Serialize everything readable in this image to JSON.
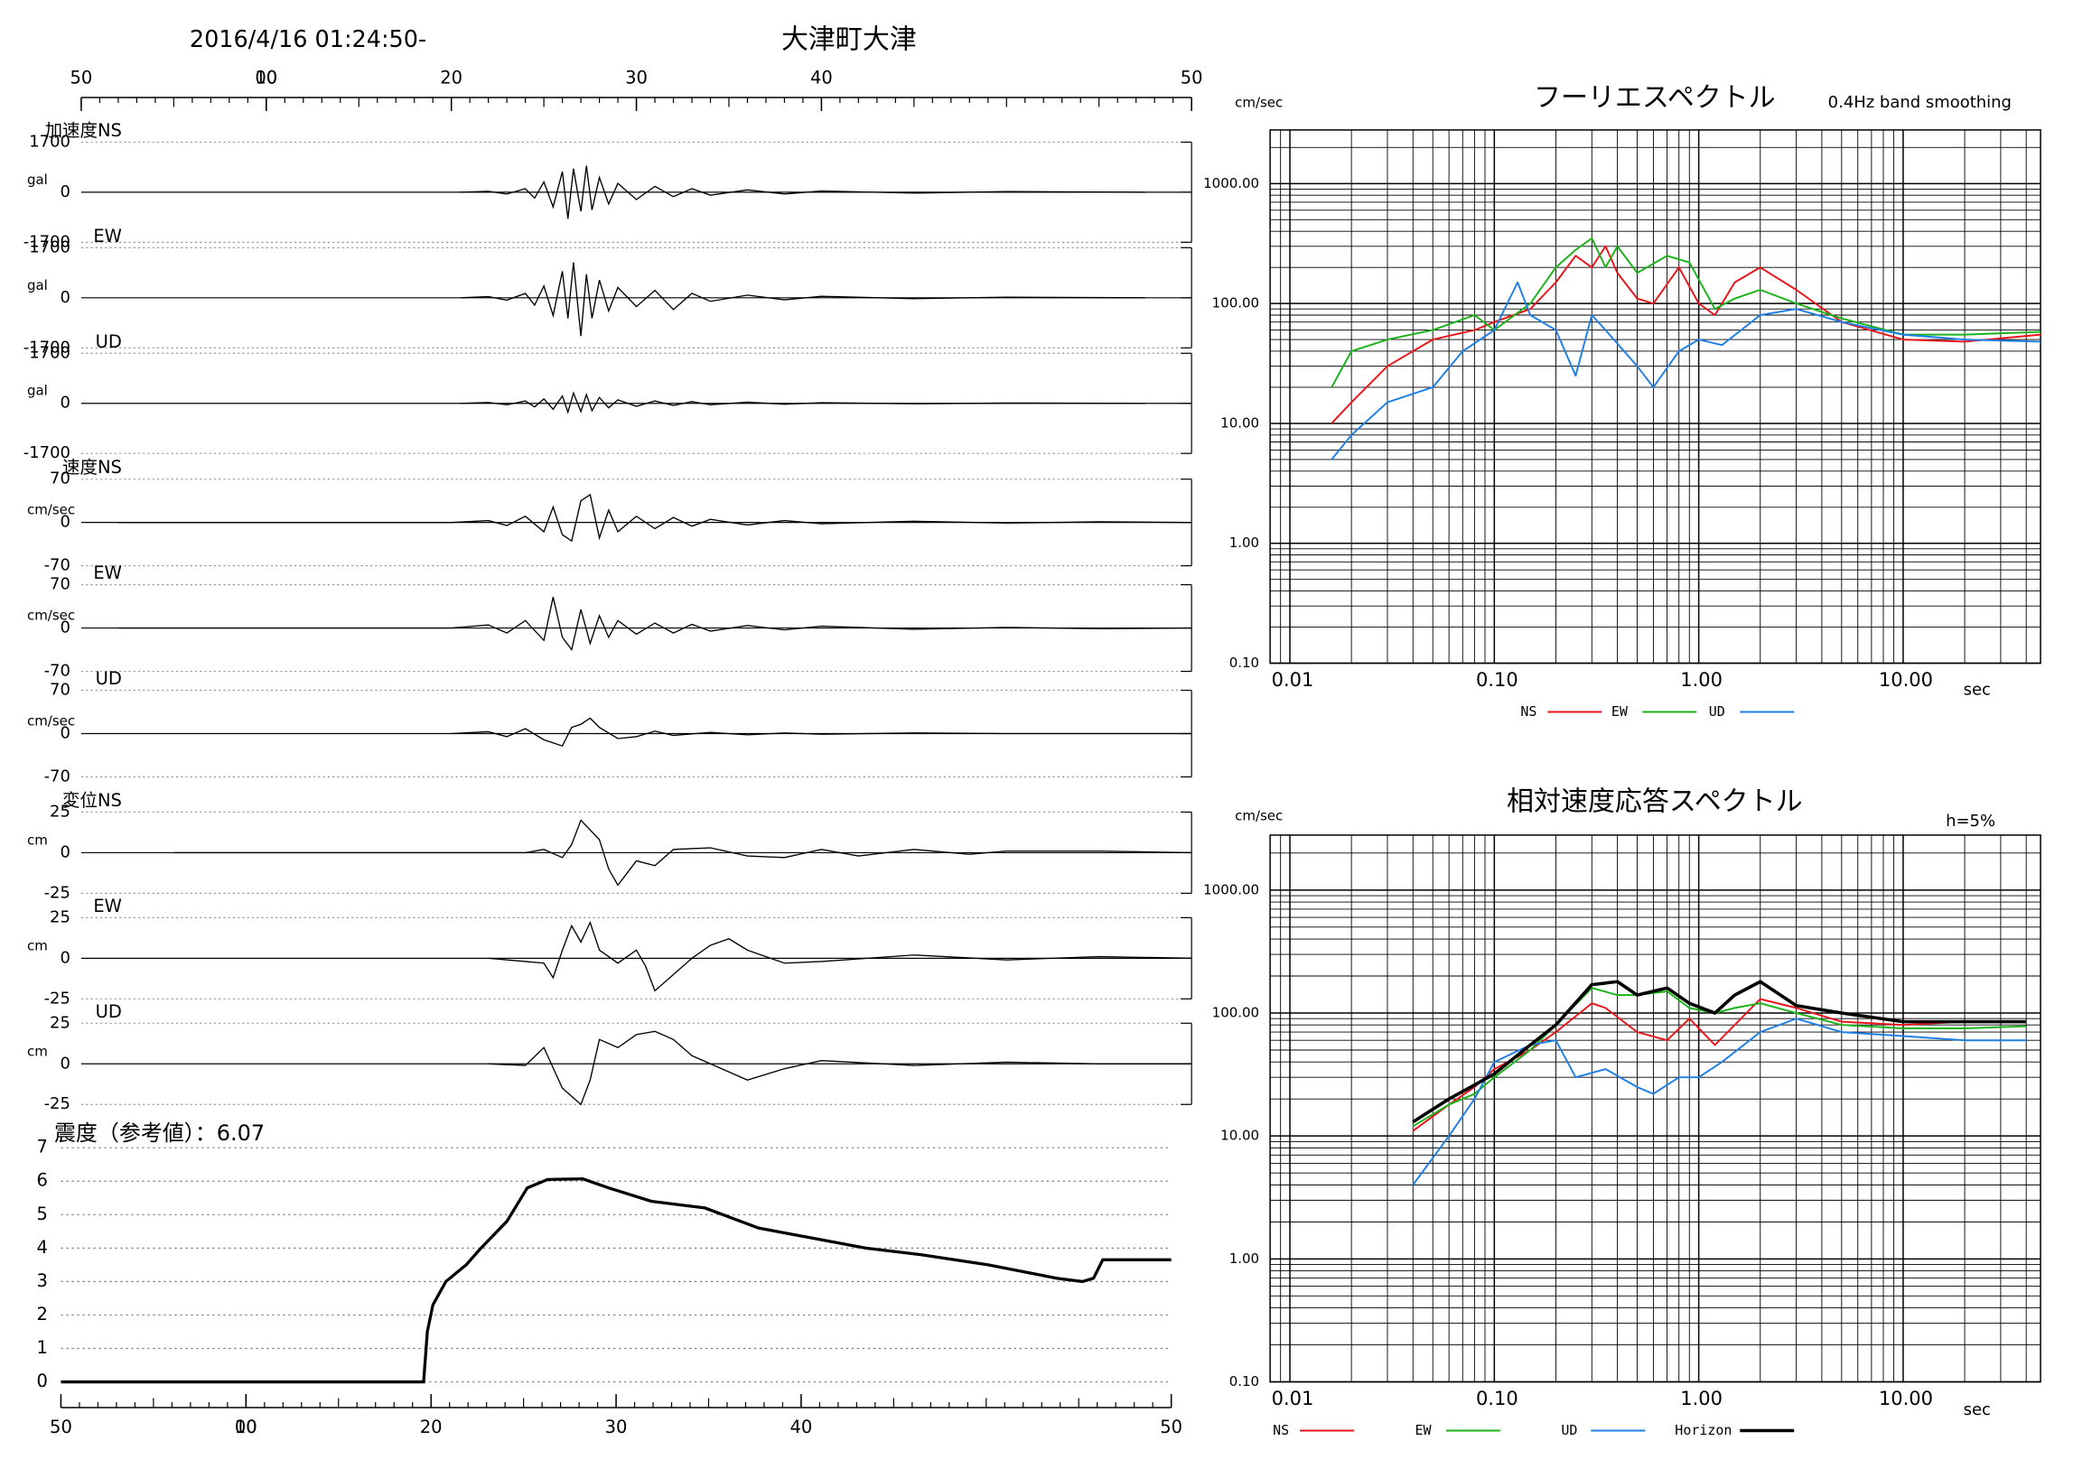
{
  "header": {
    "datetime": "2016/4/16 01:24:50-",
    "station": "大津町大津"
  },
  "chart_data": [
    {
      "type": "waveform",
      "xlim": [
        0,
        60
      ],
      "xticks": [
        {
          "value": 0,
          "label": "50"
        },
        {
          "value": 10,
          "label": "00"
        },
        10,
        20,
        30,
        40,
        {
          "value": 60,
          "label": "50"
        }
      ],
      "panels": [
        {
          "label": "加速度NS",
          "unit": "gal",
          "ylim": [
            -1700,
            1700
          ],
          "yticks": [
            -1700,
            0,
            1700
          ],
          "x": [
            20.5,
            22,
            23,
            24,
            24.5,
            25,
            25.5,
            26,
            26.3,
            26.6,
            27,
            27.3,
            27.6,
            28,
            28.5,
            29,
            30,
            31,
            32,
            33,
            34,
            36,
            38,
            40,
            45,
            50,
            57.5
          ],
          "values": [
            0,
            30,
            -60,
            120,
            -200,
            350,
            -500,
            700,
            -900,
            800,
            -650,
            900,
            -600,
            500,
            -400,
            300,
            -250,
            200,
            -150,
            120,
            -100,
            80,
            -60,
            40,
            -30,
            20,
            0
          ]
        },
        {
          "label": "EW",
          "unit": "gal",
          "ylim": [
            -1700,
            1700
          ],
          "yticks": [
            -1700,
            0,
            1700
          ],
          "x": [
            20.5,
            22,
            23,
            24,
            24.5,
            25,
            25.5,
            26,
            26.3,
            26.6,
            27,
            27.3,
            27.6,
            28,
            28.5,
            29,
            30,
            31,
            32,
            33,
            34,
            36,
            38,
            40,
            45,
            50,
            57.5
          ],
          "values": [
            0,
            40,
            -80,
            150,
            -250,
            400,
            -600,
            900,
            -700,
            1200,
            -1300,
            800,
            -700,
            600,
            -450,
            350,
            -300,
            250,
            -400,
            150,
            -120,
            90,
            -70,
            50,
            -30,
            20,
            0
          ]
        },
        {
          "label": "UD",
          "unit": "gal",
          "ylim": [
            -1700,
            1700
          ],
          "yticks": [
            -1700,
            0,
            1700
          ],
          "x": [
            20.5,
            22,
            23,
            24,
            24.5,
            25,
            25.5,
            26,
            26.3,
            26.6,
            27,
            27.3,
            27.6,
            28,
            28.5,
            29,
            30,
            31,
            32,
            33,
            34,
            36,
            38,
            40,
            45,
            50,
            57.5
          ],
          "values": [
            0,
            30,
            -50,
            80,
            -120,
            150,
            -200,
            250,
            -300,
            350,
            -280,
            300,
            -250,
            200,
            -150,
            120,
            -100,
            80,
            -70,
            60,
            -50,
            40,
            -30,
            20,
            -15,
            10,
            0
          ]
        },
        {
          "label": "速度NS",
          "unit": "cm/sec",
          "ylim": [
            -70,
            70
          ],
          "yticks": [
            -70,
            0,
            70
          ],
          "x": [
            2,
            20,
            22,
            23,
            24,
            25,
            25.5,
            26,
            26.5,
            27,
            27.5,
            28,
            28.5,
            29,
            30,
            31,
            32,
            33,
            34,
            36,
            38,
            40,
            45,
            50,
            55,
            60
          ],
          "values": [
            0,
            0,
            3,
            -5,
            10,
            -15,
            25,
            -20,
            -30,
            35,
            45,
            -25,
            20,
            -15,
            10,
            -10,
            8,
            -6,
            5,
            -4,
            3,
            -2,
            2,
            -1,
            1,
            0
          ]
        },
        {
          "label": "EW",
          "unit": "cm/sec",
          "ylim": [
            -70,
            70
          ],
          "yticks": [
            -70,
            0,
            70
          ],
          "x": [
            2,
            20,
            22,
            23,
            24,
            25,
            25.5,
            26,
            26.5,
            27,
            27.5,
            28,
            28.5,
            29,
            30,
            31,
            32,
            33,
            34,
            36,
            38,
            40,
            45,
            50,
            55,
            60
          ],
          "values": [
            0,
            0,
            5,
            -8,
            12,
            -20,
            50,
            -15,
            -35,
            30,
            -25,
            20,
            -15,
            12,
            -10,
            8,
            -8,
            6,
            -5,
            4,
            -3,
            3,
            -2,
            1,
            -1,
            0
          ]
        },
        {
          "label": "UD",
          "unit": "cm/sec",
          "ylim": [
            -70,
            70
          ],
          "yticks": [
            -70,
            0,
            70
          ],
          "x": [
            20,
            22,
            23,
            24,
            25,
            26,
            26.5,
            27,
            27.5,
            28,
            29,
            30,
            31,
            32,
            34,
            36,
            38,
            40,
            45,
            50,
            60
          ],
          "values": [
            0,
            3,
            -5,
            8,
            -10,
            -20,
            10,
            15,
            25,
            10,
            -8,
            -5,
            4,
            -3,
            2,
            -2,
            1,
            -1,
            1,
            0,
            0
          ]
        },
        {
          "label": "変位NS",
          "unit": "cm",
          "ylim": [
            -25,
            25
          ],
          "yticks": [
            -25,
            0,
            25
          ],
          "x": [
            5,
            20,
            24,
            25,
            26,
            26.5,
            27,
            28,
            28.5,
            29,
            30,
            31,
            32,
            34,
            36,
            38,
            40,
            42,
            45,
            48,
            50,
            55,
            60
          ],
          "values": [
            0,
            0,
            0,
            2,
            -3,
            5,
            20,
            8,
            -10,
            -20,
            -5,
            -8,
            2,
            3,
            -2,
            -3,
            2,
            -2,
            2,
            -1,
            1,
            1,
            0
          ]
        },
        {
          "label": "EW",
          "unit": "cm",
          "ylim": [
            -25,
            25
          ],
          "yticks": [
            -25,
            0,
            25
          ],
          "x": [
            22,
            24,
            25,
            25.5,
            26,
            26.5,
            27,
            27.5,
            28,
            29,
            30,
            30.5,
            31,
            32,
            33,
            34,
            35,
            36,
            38,
            40,
            45,
            50,
            55,
            60
          ],
          "values": [
            0,
            -2,
            -3,
            -12,
            5,
            20,
            10,
            22,
            5,
            -3,
            5,
            -5,
            -20,
            -10,
            0,
            8,
            12,
            5,
            -3,
            -2,
            2,
            -1,
            1,
            0
          ]
        },
        {
          "label": "UD",
          "unit": "cm",
          "ylim": [
            -25,
            25
          ],
          "yticks": [
            -25,
            0,
            25
          ],
          "x": [
            22,
            24,
            25,
            26,
            27,
            27.5,
            28,
            29,
            30,
            31,
            32,
            33,
            34,
            35,
            36,
            38,
            40,
            45,
            50,
            55,
            60
          ],
          "values": [
            0,
            -1,
            10,
            -15,
            -25,
            -10,
            15,
            10,
            18,
            20,
            15,
            5,
            0,
            -5,
            -10,
            -3,
            2,
            -1,
            1,
            0,
            0
          ]
        }
      ]
    },
    {
      "type": "line",
      "title": "震度（参考値）：6.07",
      "xlim": [
        0,
        60
      ],
      "xticks": [
        {
          "value": 0,
          "label": "50"
        },
        {
          "value": 10,
          "label": "00"
        },
        10,
        20,
        30,
        40,
        {
          "value": 60,
          "label": "50"
        }
      ],
      "ylim": [
        0,
        7
      ],
      "yticks": [
        0,
        1,
        2,
        3,
        4,
        5,
        6,
        7
      ],
      "grid": true,
      "x": [
        0,
        19.6,
        19.8,
        20.1,
        20.8,
        21.9,
        22.7,
        24.1,
        25.2,
        26.3,
        28.2,
        29.6,
        31.9,
        34.8,
        37.7,
        40.6,
        43.5,
        46.5,
        50.1,
        53.8,
        55.2,
        55.8,
        56.3,
        60
      ],
      "values": [
        0,
        0,
        1.5,
        2.3,
        3.0,
        3.5,
        4.0,
        4.8,
        5.8,
        6.05,
        6.07,
        5.8,
        5.4,
        5.2,
        4.6,
        4.3,
        4.0,
        3.8,
        3.5,
        3.1,
        3.0,
        3.1,
        3.65,
        3.65
      ],
      "color": "#000000"
    },
    {
      "type": "loglog",
      "title": "フーリエスペクトル",
      "subtitle": "0.4Hz band smoothing",
      "y_label": "cm/sec",
      "x_label": "sec",
      "log_x": true,
      "log_y": true,
      "grid": true,
      "xlim": [
        0.008,
        47
      ],
      "xticks": [
        0.01,
        {
          "value": 0.1,
          "label": "0.10"
        },
        {
          "value": 1,
          "label": "1.00"
        },
        {
          "value": 10,
          "label": "10.00"
        }
      ],
      "ylim": [
        0.1,
        2800
      ],
      "yticks": [
        {
          "value": 0.1,
          "label": "0.10"
        },
        {
          "value": 1,
          "label": "1.00"
        },
        {
          "value": 10,
          "label": "10.00"
        },
        {
          "value": 100,
          "label": "100.00"
        },
        {
          "value": 1000,
          "label": "1000.00"
        }
      ],
      "series": [
        {
          "name": "NS",
          "color": "#e8151b",
          "x": [
            0.016,
            0.02,
            0.03,
            0.05,
            0.08,
            0.1,
            0.15,
            0.2,
            0.25,
            0.3,
            0.35,
            0.4,
            0.5,
            0.6,
            0.8,
            1.0,
            1.2,
            1.5,
            2,
            3,
            5,
            10,
            20,
            47
          ],
          "values": [
            10,
            15,
            30,
            50,
            60,
            70,
            90,
            150,
            250,
            200,
            300,
            180,
            110,
            100,
            200,
            100,
            80,
            150,
            200,
            130,
            70,
            50,
            48,
            55
          ]
        },
        {
          "name": "EW",
          "color": "#19b319",
          "x": [
            0.016,
            0.02,
            0.03,
            0.05,
            0.08,
            0.1,
            0.15,
            0.2,
            0.25,
            0.3,
            0.35,
            0.4,
            0.5,
            0.7,
            0.9,
            1.2,
            1.5,
            2,
            3,
            5,
            10,
            20,
            47
          ],
          "values": [
            20,
            40,
            50,
            60,
            80,
            60,
            100,
            200,
            280,
            350,
            200,
            300,
            180,
            250,
            220,
            90,
            110,
            130,
            100,
            75,
            55,
            55,
            58
          ]
        },
        {
          "name": "UD",
          "color": "#1e7fe6",
          "x": [
            0.016,
            0.02,
            0.03,
            0.05,
            0.07,
            0.1,
            0.13,
            0.15,
            0.2,
            0.25,
            0.3,
            0.35,
            0.5,
            0.6,
            0.8,
            1.0,
            1.3,
            2,
            3,
            5,
            10,
            20,
            47
          ],
          "values": [
            5,
            8,
            15,
            20,
            40,
            60,
            150,
            80,
            60,
            25,
            80,
            60,
            30,
            20,
            40,
            50,
            45,
            80,
            90,
            70,
            55,
            50,
            48
          ]
        }
      ]
    },
    {
      "type": "loglog",
      "title": "相対速度応答スペクトル",
      "annotation": "h=5%",
      "y_label": "cm/sec",
      "x_label": "sec",
      "log_x": true,
      "log_y": true,
      "grid": true,
      "xlim": [
        0.008,
        47
      ],
      "xticks": [
        0.01,
        {
          "value": 0.1,
          "label": "0.10"
        },
        {
          "value": 1,
          "label": "1.00"
        },
        {
          "value": 10,
          "label": "10.00"
        }
      ],
      "ylim": [
        0.1,
        2800
      ],
      "yticks": [
        {
          "value": 0.1,
          "label": "0.10"
        },
        {
          "value": 1,
          "label": "1.00"
        },
        {
          "value": 10,
          "label": "10.00"
        },
        {
          "value": 100,
          "label": "100.00"
        },
        {
          "value": 1000,
          "label": "1000.00"
        }
      ],
      "series": [
        {
          "name": "NS",
          "color": "#e8151b",
          "x": [
            0.04,
            0.06,
            0.08,
            0.1,
            0.15,
            0.2,
            0.3,
            0.35,
            0.5,
            0.7,
            0.9,
            1.2,
            1.5,
            2,
            3,
            5,
            10,
            20,
            40
          ],
          "values": [
            11,
            18,
            25,
            35,
            50,
            70,
            120,
            110,
            70,
            60,
            90,
            55,
            80,
            130,
            110,
            85,
            80,
            85,
            85
          ]
        },
        {
          "name": "EW",
          "color": "#19b319",
          "x": [
            0.04,
            0.06,
            0.08,
            0.1,
            0.15,
            0.2,
            0.3,
            0.4,
            0.5,
            0.7,
            0.9,
            1.2,
            1.5,
            2,
            3,
            5,
            10,
            20,
            40
          ],
          "values": [
            12,
            18,
            22,
            30,
            50,
            80,
            160,
            140,
            140,
            150,
            110,
            100,
            110,
            120,
            100,
            80,
            75,
            75,
            78
          ]
        },
        {
          "name": "UD",
          "color": "#1e7fe6",
          "x": [
            0.04,
            0.06,
            0.08,
            0.1,
            0.15,
            0.2,
            0.25,
            0.35,
            0.5,
            0.6,
            0.8,
            1.0,
            1.3,
            2,
            3,
            5,
            10,
            20,
            40
          ],
          "values": [
            4,
            10,
            20,
            40,
            55,
            60,
            30,
            35,
            25,
            22,
            30,
            30,
            40,
            70,
            90,
            70,
            65,
            60,
            60
          ]
        },
        {
          "name": "Horizon",
          "color": "#000000",
          "x": [
            0.04,
            0.06,
            0.08,
            0.1,
            0.15,
            0.2,
            0.3,
            0.4,
            0.5,
            0.7,
            0.9,
            1.2,
            1.5,
            2,
            3,
            5,
            10,
            20,
            40
          ],
          "values": [
            13,
            20,
            26,
            32,
            55,
            80,
            170,
            180,
            140,
            160,
            120,
            100,
            140,
            180,
            115,
            100,
            85,
            85,
            85
          ]
        }
      ]
    }
  ]
}
